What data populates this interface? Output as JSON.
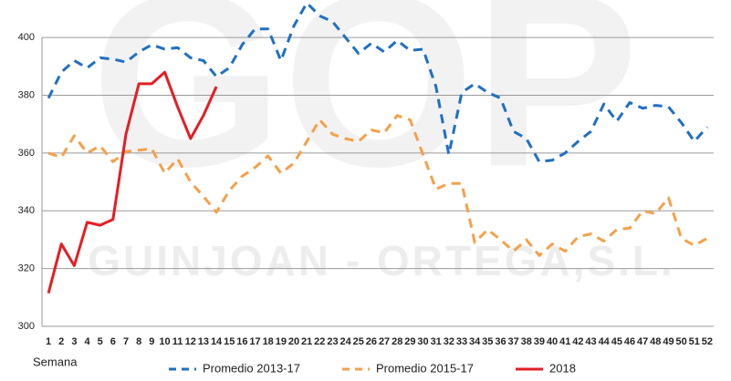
{
  "chart_data": {
    "type": "line",
    "watermark": {
      "logo": "GOP",
      "company": "GUINJOAN - ORTEGA,S.L."
    },
    "x_label": "Semana",
    "categories": [
      "1",
      "2",
      "3",
      "4",
      "5",
      "6",
      "7",
      "8",
      "9",
      "10",
      "11",
      "12",
      "13",
      "14",
      "15",
      "16",
      "17",
      "18",
      "19",
      "20",
      "21",
      "22",
      "23",
      "24",
      "25",
      "26",
      "27",
      "28",
      "29",
      "30",
      "31",
      "32",
      "33",
      "34",
      "35",
      "36",
      "37",
      "38",
      "39",
      "40",
      "41",
      "42",
      "43",
      "44",
      "45",
      "46",
      "47",
      "48",
      "49",
      "50",
      "51",
      "52"
    ],
    "series": [
      {
        "name": "Promedio 2013-17",
        "color": "#1f6fc4",
        "dashed": true,
        "values": [
          379,
          388,
          392,
          389.5,
          393,
          392.5,
          391.5,
          395,
          397.5,
          396,
          396.5,
          393,
          392,
          386.5,
          389.5,
          397.5,
          403,
          403,
          392,
          404,
          412,
          407.5,
          405.5,
          400,
          394.5,
          398,
          395,
          399,
          395.5,
          396,
          383,
          359.5,
          381,
          384,
          381,
          379,
          367.5,
          365,
          357,
          357.5,
          360,
          364,
          367.5,
          377,
          371,
          377.5,
          375.5,
          376.5,
          376,
          370.5,
          364,
          369
        ]
      },
      {
        "name": "Promedio 2015-17",
        "color": "#f5a04a",
        "dashed": true,
        "values": [
          360,
          358.5,
          366,
          360,
          362.5,
          357,
          360.5,
          361,
          361.5,
          353,
          358,
          350,
          345,
          339.5,
          347,
          352,
          355,
          359,
          353,
          356.5,
          364,
          371.5,
          366.5,
          365,
          364,
          368,
          367,
          373,
          371.5,
          359.5,
          347.5,
          349.5,
          349.5,
          329,
          333.5,
          330,
          326,
          330,
          324.5,
          328.5,
          326,
          331,
          332,
          329.5,
          333.5,
          334,
          340,
          339,
          344.5,
          330.5,
          328,
          330.5
        ]
      },
      {
        "name": "2018",
        "color": "#e31e24",
        "dashed": false,
        "values": [
          311.5,
          328.5,
          321,
          336,
          335,
          337,
          366.5,
          384,
          384,
          388,
          376,
          365,
          373,
          383,
          null,
          null,
          null,
          null,
          null,
          null,
          null,
          null,
          null,
          null,
          null,
          null,
          null,
          null,
          null,
          null,
          null,
          null,
          null,
          null,
          null,
          null,
          null,
          null,
          null,
          null,
          null,
          null,
          null,
          null,
          null,
          null,
          null,
          null,
          null,
          null,
          null,
          null
        ]
      }
    ],
    "ylim": [
      300,
      413
    ],
    "yticks": [
      300,
      320,
      340,
      360,
      380,
      400
    ],
    "grid": true
  }
}
